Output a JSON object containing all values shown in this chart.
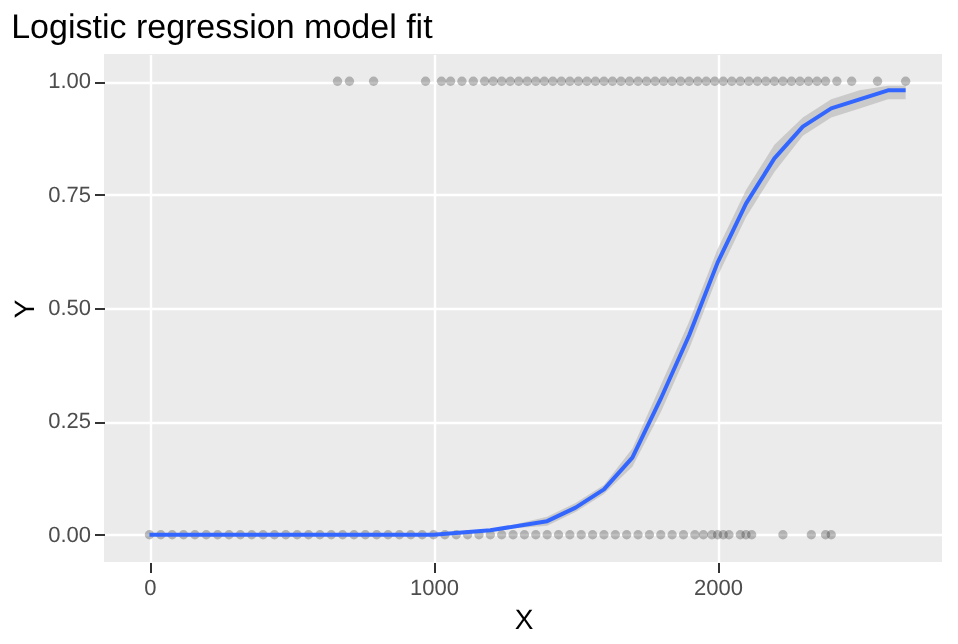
{
  "chart_data": {
    "type": "scatter",
    "title": "Logistic regression model fit",
    "xlabel": "X",
    "ylabel": "Y",
    "xlim": [
      -160,
      2790
    ],
    "ylim": [
      -0.06,
      1.06
    ],
    "xticks": [
      0,
      1000,
      2000
    ],
    "yticks": [
      {
        "value": 0,
        "label": "0.00"
      },
      {
        "value": 0.25,
        "label": "0.25"
      },
      {
        "value": 0.5,
        "label": "0.50"
      },
      {
        "value": 0.75,
        "label": "0.75"
      },
      {
        "value": 1,
        "label": "1.00"
      }
    ],
    "grid": true,
    "series": [
      {
        "marker": "circle",
        "color": "#000000",
        "x": [
          0,
          40,
          80,
          120,
          160,
          200,
          240,
          280,
          320,
          360,
          400,
          440,
          480,
          520,
          560,
          600,
          640,
          680,
          720,
          760,
          800,
          840,
          880,
          920,
          960,
          1000,
          1040,
          1080,
          1120,
          1160,
          1200,
          1240,
          1280,
          1320,
          1360,
          1400,
          1440,
          1480,
          1520,
          1560,
          1600,
          1640,
          1680,
          1720,
          1760,
          1800,
          1840,
          1880,
          1920,
          1950,
          1980,
          2000,
          2020,
          2040,
          2080,
          2100,
          2120,
          2230,
          2330,
          2380,
          2400
        ],
        "values": [
          0,
          0,
          0,
          0,
          0,
          0,
          0,
          0,
          0,
          0,
          0,
          0,
          0,
          0,
          0,
          0,
          0,
          0,
          0,
          0,
          0,
          0,
          0,
          0,
          0,
          0,
          0,
          0,
          0,
          0,
          0,
          0,
          0,
          0,
          0,
          0,
          0,
          0,
          0,
          0,
          0,
          0,
          0,
          0,
          0,
          0,
          0,
          0,
          0,
          0,
          0,
          0,
          0,
          0,
          0,
          0,
          0,
          0,
          0,
          0,
          0
        ]
      },
      {
        "marker": "circle",
        "color": "#000000",
        "x": [
          662,
          704,
          789,
          972,
          1028,
          1060,
          1100,
          1140,
          1180,
          1210,
          1240,
          1270,
          1300,
          1330,
          1360,
          1390,
          1420,
          1450,
          1480,
          1510,
          1540,
          1570,
          1600,
          1630,
          1660,
          1690,
          1720,
          1750,
          1780,
          1810,
          1840,
          1870,
          1900,
          1930,
          1960,
          1990,
          2020,
          2050,
          2080,
          2110,
          2140,
          2170,
          2200,
          2230,
          2260,
          2290,
          2320,
          2350,
          2380,
          2420,
          2472,
          2563,
          2662
        ],
        "values": [
          1,
          1,
          1,
          1,
          1,
          1,
          1,
          1,
          1,
          1,
          1,
          1,
          1,
          1,
          1,
          1,
          1,
          1,
          1,
          1,
          1,
          1,
          1,
          1,
          1,
          1,
          1,
          1,
          1,
          1,
          1,
          1,
          1,
          1,
          1,
          1,
          1,
          1,
          1,
          1,
          1,
          1,
          1,
          1,
          1,
          1,
          1,
          1,
          1,
          1,
          1,
          1,
          1
        ]
      },
      {
        "type": "line",
        "color": "#3366ff",
        "x": [
          0,
          500,
          1000,
          1200,
          1400,
          1500,
          1600,
          1700,
          1800,
          1900,
          2000,
          2100,
          2200,
          2300,
          2400,
          2500,
          2600,
          2662
        ],
        "values": [
          0,
          0,
          0,
          0.01,
          0.03,
          0.06,
          0.1,
          0.17,
          0.3,
          0.44,
          0.6,
          0.73,
          0.83,
          0.9,
          0.94,
          0.96,
          0.98,
          0.98
        ],
        "lower": [
          0,
          0,
          0,
          0.01,
          0.02,
          0.05,
          0.09,
          0.15,
          0.27,
          0.41,
          0.57,
          0.7,
          0.8,
          0.88,
          0.92,
          0.94,
          0.96,
          0.96
        ],
        "upper": [
          0,
          0,
          0,
          0.01,
          0.04,
          0.07,
          0.11,
          0.19,
          0.33,
          0.47,
          0.63,
          0.76,
          0.86,
          0.92,
          0.96,
          0.98,
          0.99,
          0.99
        ]
      }
    ]
  }
}
